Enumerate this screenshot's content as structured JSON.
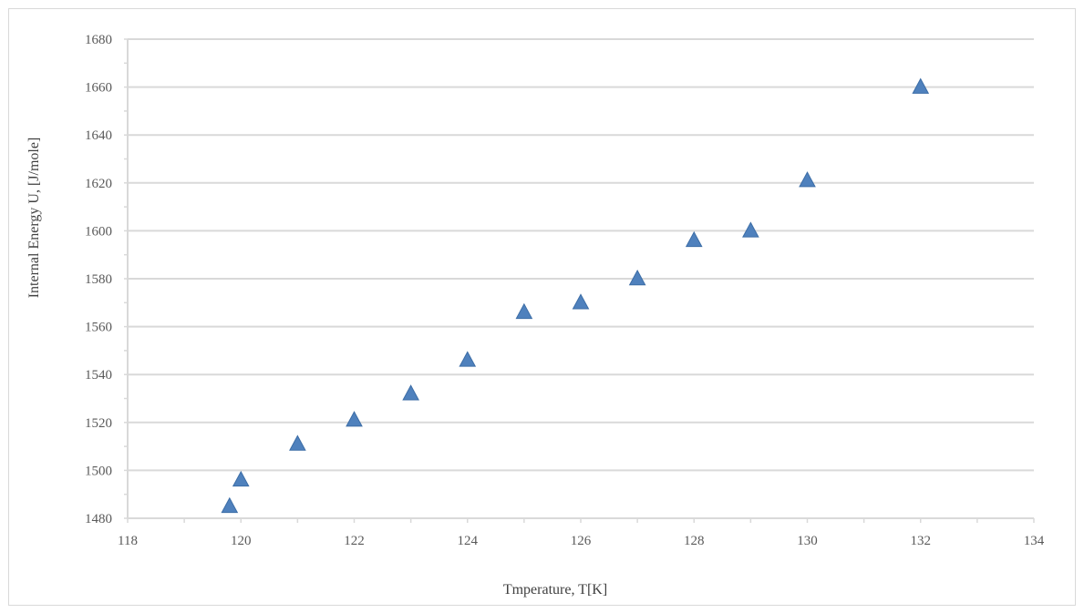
{
  "chart_data": {
    "type": "scatter",
    "title": "",
    "xlabel": "Tmperature, T[K]",
    "ylabel": "Internal Energy U, [J/mole]",
    "xlim": [
      118,
      134
    ],
    "ylim": [
      1480,
      1680
    ],
    "xticks": [
      "118",
      "120",
      "122",
      "124",
      "126",
      "128",
      "130",
      "132",
      "134"
    ],
    "yticks": [
      "1480",
      "1500",
      "1520",
      "1540",
      "1560",
      "1580",
      "1600",
      "1620",
      "1640",
      "1660",
      "1680"
    ],
    "grid": "horizontal",
    "marker": "triangle",
    "marker_color": "#4f81bd",
    "grid_color": "#d9d9d9",
    "series": [
      {
        "x": [
          119.8,
          120,
          121,
          122,
          123,
          124,
          125,
          126,
          127,
          128,
          129,
          130,
          132
        ],
        "y": [
          1485,
          1496,
          1511,
          1521,
          1532,
          1546,
          1566,
          1570,
          1580,
          1596,
          1600,
          1621,
          1660
        ]
      }
    ]
  }
}
